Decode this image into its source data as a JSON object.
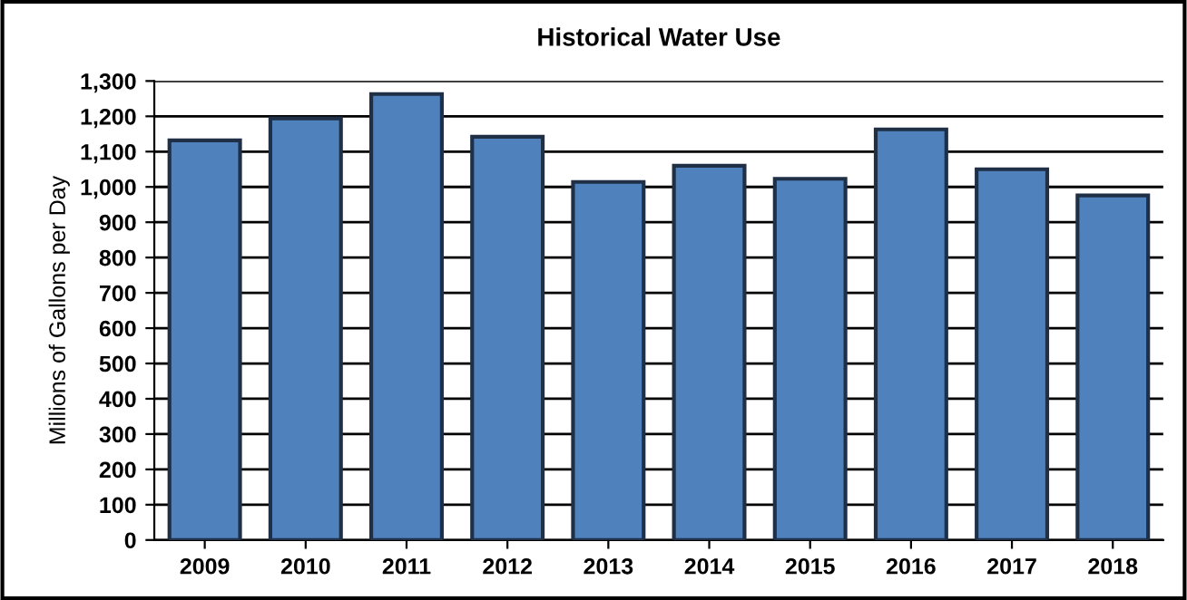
{
  "chart_data": {
    "type": "bar",
    "title": "Historical Water Use",
    "ylabel": "Millions of Gallons per Day",
    "categories": [
      "2009",
      "2010",
      "2011",
      "2012",
      "2013",
      "2014",
      "2015",
      "2016",
      "2017",
      "2018"
    ],
    "values": [
      1132,
      1194,
      1263,
      1142,
      1014,
      1060,
      1023,
      1163,
      1050,
      976
    ],
    "color": "#4f81bd",
    "ylim": [
      0,
      1300
    ],
    "yticks": [
      0,
      100,
      200,
      300,
      400,
      500,
      600,
      700,
      800,
      900,
      {
        "value": 1000,
        "label": "1,000"
      },
      {
        "value": 1100,
        "label": "1,100"
      },
      {
        "value": 1200,
        "label": "1,200"
      },
      {
        "value": 1300,
        "label": "1,300"
      }
    ],
    "grid": "y"
  }
}
